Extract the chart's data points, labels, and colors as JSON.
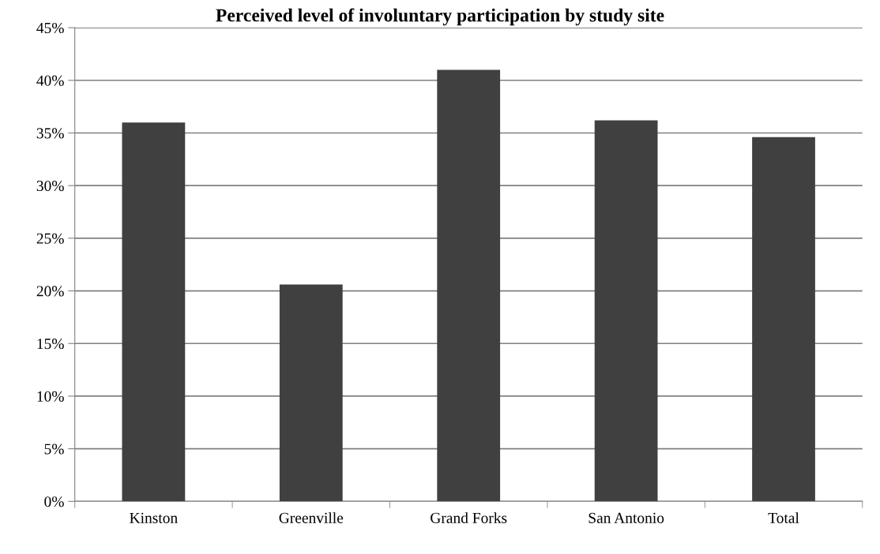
{
  "chart_data": {
    "type": "bar",
    "title": "Perceived level of involuntary participation by study site",
    "categories": [
      "Kinston",
      "Greenville",
      "Grand Forks",
      "San Antonio",
      "Total"
    ],
    "values": [
      36.0,
      20.6,
      41.0,
      36.2,
      34.6
    ],
    "color": "#404040",
    "ylim": [
      0,
      45
    ],
    "yticks": [
      {
        "value": 0,
        "label": "0%"
      },
      {
        "value": 5,
        "label": "5%"
      },
      {
        "value": 10,
        "label": "10%"
      },
      {
        "value": 15,
        "label": "15%"
      },
      {
        "value": 20,
        "label": "20%"
      },
      {
        "value": 25,
        "label": "25%"
      },
      {
        "value": 30,
        "label": "30%"
      },
      {
        "value": 35,
        "label": "35%"
      },
      {
        "value": 40,
        "label": "40%"
      },
      {
        "value": 45,
        "label": "45%"
      }
    ],
    "grid": "y",
    "legend": false
  }
}
